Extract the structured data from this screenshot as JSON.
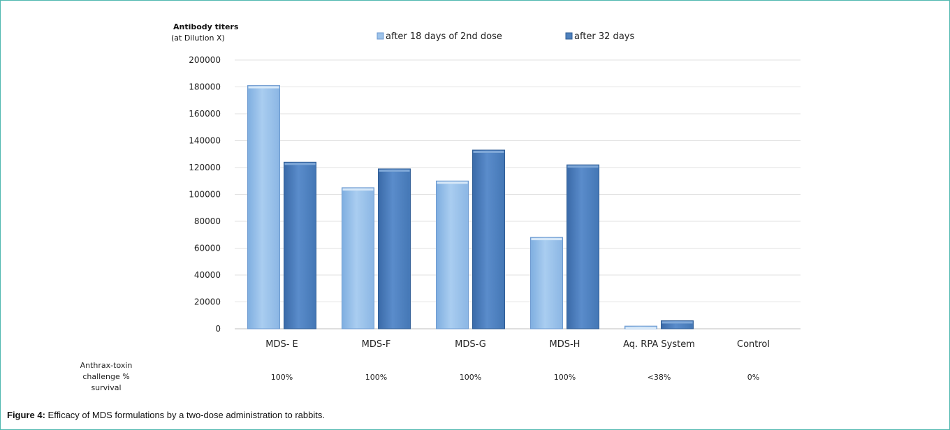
{
  "chart_data": {
    "type": "bar",
    "ylabel": "Antibody titers",
    "ylabel_sub": "(at Dilution X)",
    "ylim": [
      0,
      200000
    ],
    "yticks": [
      0,
      20000,
      40000,
      60000,
      80000,
      100000,
      120000,
      140000,
      160000,
      180000,
      200000
    ],
    "grid": true,
    "legend_position": "top",
    "categories": [
      "MDS- E",
      "MDS-F",
      "MDS-G",
      "MDS-H",
      "Aq. RPA System",
      "Control"
    ],
    "series": [
      {
        "name": "after 18 days of 2nd dose",
        "color": "#9dc3ea",
        "values": [
          181000,
          105000,
          110000,
          68000,
          2000,
          0
        ]
      },
      {
        "name": "after 32 days",
        "color": "#4f81bd",
        "values": [
          124000,
          119000,
          133000,
          122000,
          6000,
          0
        ]
      }
    ],
    "survival_label": [
      "Anthrax-toxin",
      "challenge %",
      "survival"
    ],
    "survival_values": [
      "100%",
      "100%",
      "100%",
      "100%",
      "<38%",
      "0%"
    ]
  },
  "caption": {
    "label": "Figure  4:",
    "text": " Efficacy of MDS formulations by a two-dose administration to rabbits."
  }
}
